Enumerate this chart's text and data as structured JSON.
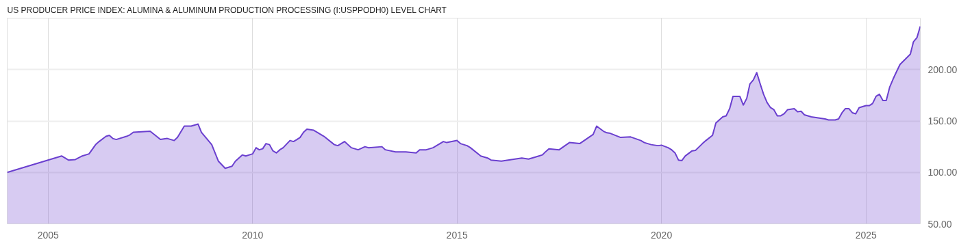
{
  "chart_data": {
    "type": "area",
    "title": "US PRODUCER PRICE INDEX: ALUMINA & ALUMINUM PRODUCTION PROCESSING (I:USPPODH0) LEVEL CHART",
    "xlim": [
      "2004-01",
      "2026-05"
    ],
    "xticks": [
      "2005",
      "2010",
      "2015",
      "2020",
      "2025"
    ],
    "ylim": [
      50,
      250
    ],
    "yticks": [
      {
        "value": 50,
        "label": "50.00"
      },
      {
        "value": 100,
        "label": "100.00"
      },
      {
        "value": 150,
        "label": "150.00"
      },
      {
        "value": 200,
        "label": "200.00"
      }
    ],
    "grid": true,
    "series": [
      {
        "color": "#6a3fcf",
        "x": [
          "2004-01",
          "2005-05",
          "2005-07",
          "2005-09",
          "2005-11",
          "2006-01",
          "2006-03",
          "2006-04",
          "2006-06",
          "2006-07",
          "2006-08",
          "2006-09",
          "2006-12",
          "2007-01",
          "2007-02",
          "2007-07",
          "2007-10",
          "2007-12",
          "2008-02",
          "2008-03",
          "2008-05",
          "2008-07",
          "2008-09",
          "2008-10",
          "2009-01",
          "2009-03",
          "2009-05",
          "2009-07",
          "2009-08",
          "2009-10",
          "2009-11",
          "2010-01",
          "2010-02",
          "2010-03",
          "2010-04",
          "2010-05",
          "2010-06",
          "2010-07",
          "2010-08",
          "2010-09",
          "2010-10",
          "2010-12",
          "2011-01",
          "2011-02",
          "2011-03",
          "2011-04",
          "2011-05",
          "2011-07",
          "2011-08",
          "2011-10",
          "2012-01",
          "2012-02",
          "2012-04",
          "2012-06",
          "2012-08",
          "2012-10",
          "2012-11",
          "2013-03",
          "2013-04",
          "2013-07",
          "2013-10",
          "2014-01",
          "2014-02",
          "2014-04",
          "2014-06",
          "2014-09",
          "2014-10",
          "2015-01",
          "2015-02",
          "2015-04",
          "2015-05",
          "2015-08",
          "2015-10",
          "2015-11",
          "2016-02",
          "2016-04",
          "2016-05",
          "2016-08",
          "2016-10",
          "2017-01",
          "2017-02",
          "2017-03",
          "2017-04",
          "2017-07",
          "2017-10",
          "2018-01",
          "2018-05",
          "2018-06",
          "2018-08",
          "2018-09",
          "2018-10",
          "2019-01",
          "2019-04",
          "2019-07",
          "2019-08",
          "2019-10",
          "2019-12",
          "2020-01",
          "2020-03",
          "2020-04",
          "2020-05",
          "2020-06",
          "2020-07",
          "2020-08",
          "2020-10",
          "2020-11",
          "2021-01",
          "2021-02",
          "2021-04",
          "2021-05",
          "2021-07",
          "2021-08",
          "2021-09",
          "2021-10",
          "2021-12",
          "2022-01",
          "2022-02",
          "2022-03",
          "2022-04",
          "2022-05",
          "2022-06",
          "2022-07",
          "2022-08",
          "2022-09",
          "2022-10",
          "2022-11",
          "2022-12",
          "2023-01",
          "2023-02",
          "2023-04",
          "2023-05",
          "2023-06",
          "2023-07",
          "2023-09",
          "2024-01",
          "2024-02",
          "2024-04",
          "2024-05",
          "2024-06",
          "2024-07",
          "2024-08",
          "2024-09",
          "2024-10",
          "2024-11",
          "2025-01",
          "2025-02",
          "2025-03",
          "2025-04",
          "2025-05",
          "2025-06",
          "2025-07",
          "2025-08",
          "2025-09",
          "2025-10",
          "2025-11",
          "2026-02",
          "2026-03",
          "2026-04",
          "2026-05"
        ],
        "values": [
          100,
          116,
          112,
          112.5,
          116,
          118,
          127,
          130,
          135,
          136,
          133,
          132,
          135,
          136.5,
          139,
          140,
          132,
          133,
          131,
          134,
          145,
          145,
          147,
          139,
          127,
          111,
          104,
          106,
          111,
          117,
          116,
          118,
          124,
          122,
          123,
          128,
          127,
          121,
          119,
          122,
          124,
          131,
          130,
          132,
          134,
          139,
          142,
          141,
          139,
          135,
          127,
          126,
          130,
          124,
          122,
          125,
          124,
          125,
          122,
          120,
          120,
          119,
          122,
          122,
          124,
          130,
          129,
          131,
          128,
          126,
          124,
          116,
          114,
          112,
          111,
          112,
          112.5,
          114,
          113,
          116,
          117,
          120,
          123,
          122,
          129,
          128,
          137,
          145,
          140,
          138.5,
          138,
          134,
          134.5,
          131,
          129,
          127,
          126,
          126.5,
          124,
          122,
          119,
          112,
          111.5,
          116,
          121,
          121.5,
          128,
          131,
          136,
          148,
          154,
          155,
          162,
          174,
          174,
          165.5,
          172,
          186,
          190,
          197,
          186,
          176,
          168,
          163,
          161,
          155,
          155,
          157,
          161,
          162,
          159,
          159.5,
          156,
          154,
          152,
          151,
          151,
          152,
          158,
          162,
          162,
          158,
          157,
          163,
          165,
          165,
          167,
          174,
          176,
          170,
          170,
          183,
          191,
          198,
          205,
          215,
          227,
          231,
          242
        ]
      }
    ]
  }
}
